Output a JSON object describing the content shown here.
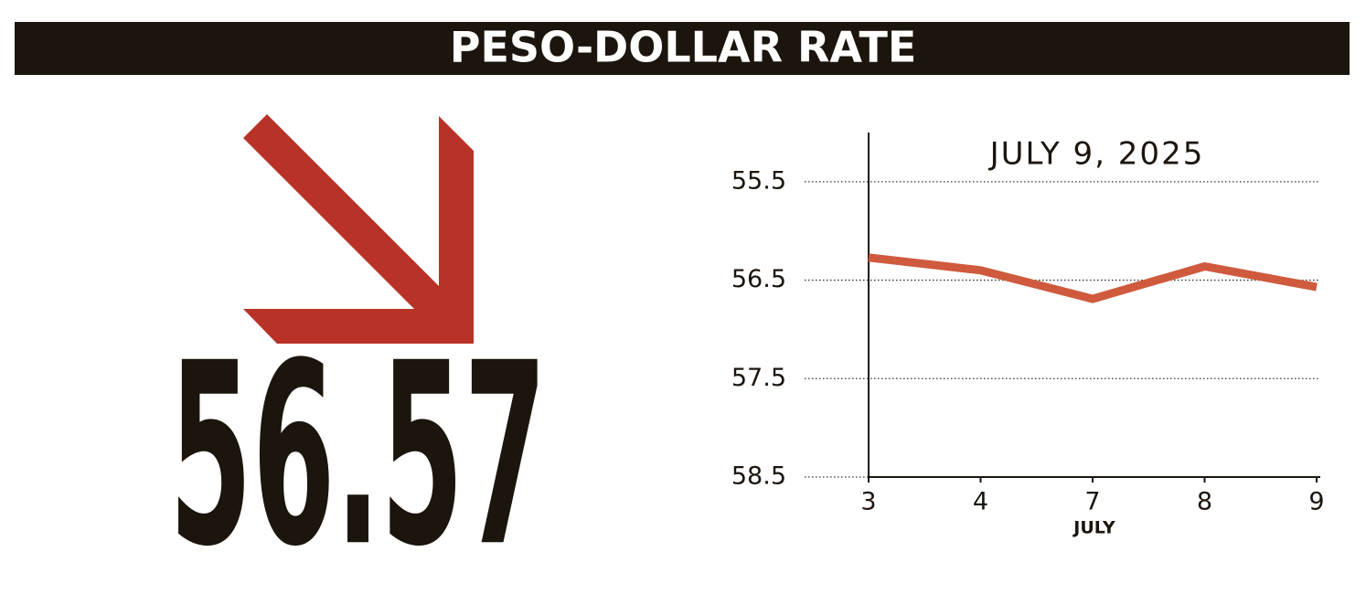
{
  "chart_data": {
    "type": "line",
    "title": "PESO-DOLLAR RATE",
    "headline_value": "56.57",
    "annotation": "JULY 9, 2025",
    "x_label": "JULY",
    "categories": [
      "3",
      "4",
      "7",
      "8",
      "9"
    ],
    "values": [
      56.27,
      56.4,
      56.69,
      56.36,
      56.57
    ],
    "color": "#cf5a3e",
    "ylim": [
      58.5,
      55
    ],
    "yticks": [
      55.5,
      56.5,
      57.5,
      58.5
    ],
    "grid": true
  }
}
